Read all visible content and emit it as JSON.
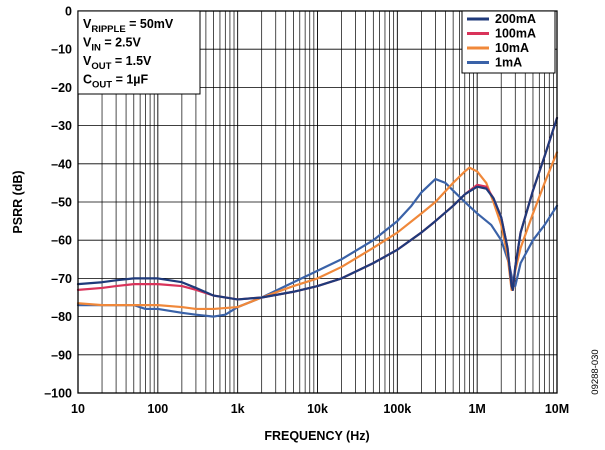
{
  "chart_data": {
    "type": "line",
    "xlabel": "FREQUENCY (Hz)",
    "ylabel": "PSRR (dB)",
    "xscale": "log",
    "xlim": [
      10,
      10000000
    ],
    "ylim": [
      -100,
      0
    ],
    "grid": true,
    "legend_position": "top-right",
    "x_ticks": [
      {
        "value": 10,
        "label": "10"
      },
      {
        "value": 100,
        "label": "100"
      },
      {
        "value": 1000,
        "label": "1k"
      },
      {
        "value": 10000,
        "label": "10k"
      },
      {
        "value": 100000,
        "label": "100k"
      },
      {
        "value": 1000000,
        "label": "1M"
      },
      {
        "value": 10000000,
        "label": "10M"
      }
    ],
    "y_ticks": [
      {
        "value": 0,
        "label": "0"
      },
      {
        "value": -10,
        "label": "–10"
      },
      {
        "value": -20,
        "label": "–20"
      },
      {
        "value": -30,
        "label": "–30"
      },
      {
        "value": -40,
        "label": "–40"
      },
      {
        "value": -50,
        "label": "–50"
      },
      {
        "value": -60,
        "label": "–60"
      },
      {
        "value": -70,
        "label": "–70"
      },
      {
        "value": -80,
        "label": "–80"
      },
      {
        "value": -90,
        "label": "–90"
      },
      {
        "value": -100,
        "label": "–100"
      }
    ],
    "conditions": [
      {
        "sym": "V",
        "sub": "RIPPLE",
        "rest": " = 50mV"
      },
      {
        "sym": "V",
        "sub": "IN",
        "rest": " = 2.5V"
      },
      {
        "sym": "V",
        "sub": "OUT",
        "rest": " = 1.5V"
      },
      {
        "sym": "C",
        "sub": "OUT",
        "rest": " = 1µF"
      }
    ],
    "series": [
      {
        "name": "200mA",
        "color": "#1f3a7a",
        "points": [
          [
            10,
            -71.5
          ],
          [
            20,
            -71
          ],
          [
            30,
            -70.5
          ],
          [
            50,
            -70
          ],
          [
            100,
            -70
          ],
          [
            200,
            -71
          ],
          [
            300,
            -72.5
          ],
          [
            500,
            -74.5
          ],
          [
            1000,
            -75.5
          ],
          [
            2000,
            -75
          ],
          [
            5000,
            -73.5
          ],
          [
            10000,
            -72
          ],
          [
            20000,
            -70
          ],
          [
            50000,
            -66
          ],
          [
            100000,
            -62.5
          ],
          [
            200000,
            -58
          ],
          [
            300000,
            -55
          ],
          [
            500000,
            -51
          ],
          [
            700000,
            -48
          ],
          [
            1000000,
            -46
          ],
          [
            1300000,
            -46.5
          ],
          [
            1600000,
            -49
          ],
          [
            2000000,
            -54
          ],
          [
            2400000,
            -62
          ],
          [
            2700000,
            -72
          ],
          [
            2800000,
            -73
          ],
          [
            3000000,
            -67
          ],
          [
            3500000,
            -58
          ],
          [
            5000000,
            -47
          ],
          [
            7000000,
            -38
          ],
          [
            10000000,
            -28
          ]
        ]
      },
      {
        "name": "100mA",
        "color": "#d9335a",
        "points": [
          [
            10,
            -73
          ],
          [
            20,
            -72.5
          ],
          [
            30,
            -72
          ],
          [
            50,
            -71.5
          ],
          [
            100,
            -71.5
          ],
          [
            200,
            -72
          ],
          [
            300,
            -73
          ],
          [
            500,
            -74.5
          ],
          [
            1000,
            -75.5
          ],
          [
            2000,
            -75
          ],
          [
            5000,
            -73.5
          ],
          [
            10000,
            -72
          ],
          [
            20000,
            -70
          ],
          [
            50000,
            -66
          ],
          [
            100000,
            -62.5
          ],
          [
            200000,
            -58
          ],
          [
            300000,
            -55
          ],
          [
            500000,
            -51
          ],
          [
            700000,
            -48
          ],
          [
            1000000,
            -45.5
          ],
          [
            1300000,
            -46
          ],
          [
            1600000,
            -49
          ],
          [
            2000000,
            -54
          ],
          [
            2400000,
            -62
          ],
          [
            2700000,
            -72
          ],
          [
            2800000,
            -73
          ],
          [
            3000000,
            -67
          ],
          [
            3500000,
            -58
          ],
          [
            5000000,
            -47
          ],
          [
            7000000,
            -38
          ],
          [
            10000000,
            -28
          ]
        ]
      },
      {
        "name": "10mA",
        "color": "#f0883a",
        "points": [
          [
            10,
            -76.5
          ],
          [
            20,
            -77
          ],
          [
            30,
            -77
          ],
          [
            50,
            -77
          ],
          [
            100,
            -77
          ],
          [
            200,
            -77.5
          ],
          [
            300,
            -78
          ],
          [
            500,
            -78
          ],
          [
            1000,
            -77.5
          ],
          [
            2000,
            -75
          ],
          [
            5000,
            -72
          ],
          [
            10000,
            -70
          ],
          [
            20000,
            -67
          ],
          [
            50000,
            -62
          ],
          [
            100000,
            -58
          ],
          [
            200000,
            -53
          ],
          [
            300000,
            -50
          ],
          [
            500000,
            -45
          ],
          [
            700000,
            -42
          ],
          [
            800000,
            -41
          ],
          [
            1000000,
            -42
          ],
          [
            1300000,
            -45
          ],
          [
            1600000,
            -50
          ],
          [
            2000000,
            -56
          ],
          [
            2400000,
            -64
          ],
          [
            2700000,
            -73
          ],
          [
            2800000,
            -73
          ],
          [
            3000000,
            -68
          ],
          [
            3500000,
            -62
          ],
          [
            5000000,
            -53
          ],
          [
            7000000,
            -45
          ],
          [
            10000000,
            -37
          ]
        ]
      },
      {
        "name": "1mA",
        "color": "#3a62a8",
        "points": [
          [
            10,
            -77
          ],
          [
            20,
            -77
          ],
          [
            30,
            -77
          ],
          [
            50,
            -77
          ],
          [
            70,
            -78
          ],
          [
            100,
            -78
          ],
          [
            200,
            -79
          ],
          [
            300,
            -79.5
          ],
          [
            500,
            -80
          ],
          [
            700,
            -79.5
          ],
          [
            1000,
            -77.5
          ],
          [
            2000,
            -75
          ],
          [
            5000,
            -71
          ],
          [
            10000,
            -68
          ],
          [
            20000,
            -65
          ],
          [
            50000,
            -60
          ],
          [
            100000,
            -55
          ],
          [
            150000,
            -51
          ],
          [
            200000,
            -47.5
          ],
          [
            300000,
            -44
          ],
          [
            400000,
            -45
          ],
          [
            500000,
            -47
          ],
          [
            700000,
            -50
          ],
          [
            1000000,
            -53
          ],
          [
            1500000,
            -56
          ],
          [
            2000000,
            -60
          ],
          [
            2500000,
            -66
          ],
          [
            2800000,
            -71
          ],
          [
            3000000,
            -72
          ],
          [
            3500000,
            -66
          ],
          [
            5000000,
            -60
          ],
          [
            7000000,
            -56
          ],
          [
            10000000,
            -51
          ]
        ]
      }
    ]
  },
  "figure_id": "09288-030"
}
